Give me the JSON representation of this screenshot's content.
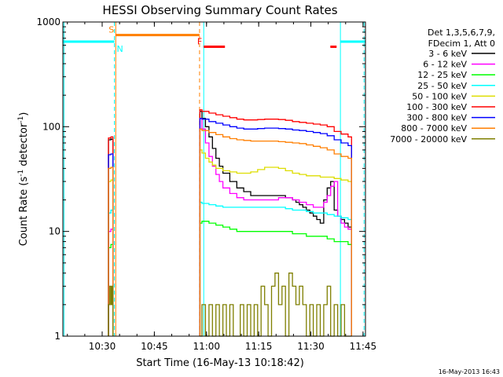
{
  "chart_data": {
    "type": "line",
    "title": "HESSI Observing Summary Count Rates",
    "xlabel": "Start Time (16-May-13 10:18:42)",
    "ylabel_prefix": "Count Rate (s",
    "ylabel_exp1": "-1",
    "ylabel_mid": " detector",
    "ylabel_exp2": "-1",
    "ylabel_suffix": ")",
    "footer": "16-May-2013 16:43",
    "x_axis_units": "minutes since 10:18:42",
    "xlim": [
      0,
      87
    ],
    "ylim": [
      1,
      1000
    ],
    "y_scale": "log",
    "x_ticks": [
      {
        "value": 11.3,
        "label": "10:30"
      },
      {
        "value": 26.3,
        "label": "10:45"
      },
      {
        "value": 41.3,
        "label": "11:00"
      },
      {
        "value": 56.3,
        "label": "11:15"
      },
      {
        "value": 71.3,
        "label": "11:30"
      },
      {
        "value": 86.3,
        "label": "11:45"
      }
    ],
    "y_ticks": [
      {
        "value": 1,
        "label": "1"
      },
      {
        "value": 10,
        "label": "10"
      },
      {
        "value": 100,
        "label": "100"
      },
      {
        "value": 1000,
        "label": "1000"
      }
    ],
    "legend": {
      "position": "right",
      "header": [
        "Det 1,3,5,6,7,9,",
        "FDecim 1, Att 0"
      ]
    },
    "series": [
      {
        "name": "3 - 6 keV",
        "color": "#000000",
        "segments": [
          {
            "x": [
              13.1,
              13.8,
              14.4
            ],
            "y": [
              75,
              76,
              74
            ]
          },
          {
            "x": [
              39.4,
              40,
              41,
              42,
              43,
              44,
              45,
              46,
              48,
              50,
              52,
              54,
              56,
              58,
              60,
              62,
              64,
              66,
              67,
              68,
              69,
              70,
              71,
              72,
              73,
              74,
              75,
              76,
              77,
              78,
              79,
              80,
              81,
              82,
              83
            ],
            "y": [
              140,
              120,
              100,
              80,
              62,
              50,
              42,
              36,
              30,
              26,
              24,
              22,
              22,
              22,
              22,
              22,
              21,
              20,
              19,
              18,
              17,
              16,
              15,
              14,
              13,
              12,
              20,
              26,
              30,
              16,
              14,
              13,
              12,
              11,
              9
            ]
          }
        ]
      },
      {
        "name": "6 - 12 keV",
        "color": "#ff00ff",
        "segments": [
          {
            "x": [
              13.1,
              13.8,
              14.4
            ],
            "y": [
              10,
              10.5,
              10
            ]
          },
          {
            "x": [
              39.4,
              40,
              41,
              42,
              43,
              44,
              45,
              46,
              48,
              50,
              52,
              54,
              56,
              58,
              60,
              62,
              64,
              66,
              68,
              70,
              72,
              74,
              75,
              76,
              77,
              78,
              79,
              80,
              81,
              82,
              83
            ],
            "y": [
              120,
              95,
              70,
              52,
              42,
              35,
              30,
              26,
              23,
              21,
              20,
              20,
              20,
              20,
              20,
              21,
              21,
              20,
              19,
              18,
              17,
              17,
              19,
              22,
              27,
              30,
              14,
              12,
              11,
              10.5,
              10
            ]
          }
        ]
      },
      {
        "name": "12 - 25 keV",
        "color": "#00ff00",
        "segments": [
          {
            "x": [
              13.1,
              13.8,
              14.4
            ],
            "y": [
              7,
              7.5,
              7
            ]
          },
          {
            "x": [
              39.4,
              40,
              42,
              44,
              46,
              48,
              50,
              52,
              54,
              56,
              58,
              60,
              62,
              64,
              66,
              68,
              70,
              72,
              74,
              76,
              78,
              80,
              82,
              83
            ],
            "y": [
              12,
              12.5,
              12,
              11.5,
              11,
              10.5,
              10,
              10,
              10,
              10,
              10,
              10,
              10,
              10,
              9.5,
              9.5,
              9,
              9,
              9,
              8.5,
              8,
              8,
              7.5,
              7
            ]
          }
        ]
      },
      {
        "name": "25 - 50 keV",
        "color": "#00ffff",
        "segments": [
          {
            "x": [
              13.1,
              13.8,
              14.4
            ],
            "y": [
              15,
              16,
              15
            ]
          },
          {
            "x": [
              39.4,
              40,
              42,
              44,
              46,
              48,
              50,
              52,
              54,
              56,
              58,
              60,
              62,
              64,
              66,
              68,
              70,
              72,
              74,
              76,
              78,
              80,
              82,
              83
            ],
            "y": [
              19,
              18.5,
              18,
              17.5,
              17,
              17,
              17,
              17,
              17,
              17,
              17,
              17,
              17,
              16.5,
              16,
              16,
              15.5,
              15,
              15,
              14.5,
              14,
              13.5,
              13,
              13
            ]
          }
        ]
      },
      {
        "name": "50 - 100 keV",
        "color": "#dddd00",
        "segments": [
          {
            "x": [
              13.1,
              13.8,
              14.4
            ],
            "y": [
              30,
              31,
              30
            ]
          },
          {
            "x": [
              39.4,
              40,
              41,
              42,
              43,
              44,
              46,
              48,
              50,
              52,
              54,
              56,
              58,
              60,
              62,
              64,
              66,
              68,
              70,
              72,
              74,
              76,
              78,
              80,
              82,
              83
            ],
            "y": [
              60,
              56,
              50,
              46,
              43,
              40,
              38,
              37,
              36,
              36,
              37,
              39,
              41,
              41,
              40,
              38,
              36,
              35,
              34,
              34,
              33,
              33,
              32,
              31,
              30,
              30
            ]
          }
        ]
      },
      {
        "name": "100 - 300 keV",
        "color": "#ff0000",
        "segments": [
          {
            "x": [
              13.1,
              13.8,
              14.4
            ],
            "y": [
              78,
              80,
              78
            ]
          },
          {
            "x": [
              39.4,
              40,
              42,
              44,
              46,
              48,
              50,
              52,
              54,
              56,
              58,
              60,
              62,
              64,
              66,
              68,
              70,
              72,
              74,
              76,
              78,
              80,
              82,
              83
            ],
            "y": [
              145,
              140,
              135,
              130,
              126,
              122,
              118,
              116,
              116,
              117,
              118,
              118,
              117,
              115,
              112,
              110,
              108,
              106,
              104,
              100,
              90,
              85,
              80,
              78
            ]
          }
        ]
      },
      {
        "name": "300 - 800 keV",
        "color": "#0000ff",
        "segments": [
          {
            "x": [
              13.1,
              13.8,
              14.4
            ],
            "y": [
              54,
              55,
              54
            ]
          },
          {
            "x": [
              39.4,
              40,
              42,
              44,
              46,
              48,
              50,
              52,
              54,
              56,
              58,
              60,
              62,
              64,
              66,
              68,
              70,
              72,
              74,
              76,
              78,
              80,
              82,
              83
            ],
            "y": [
              120,
              118,
              112,
              108,
              104,
              100,
              97,
              95,
              95,
              96,
              97,
              97,
              96,
              95,
              93,
              92,
              90,
              88,
              86,
              82,
              75,
              70,
              66,
              64
            ]
          }
        ]
      },
      {
        "name": "800 - 7000 keV",
        "color": "#ff7f00",
        "segments": [
          {
            "x": [
              13.1,
              13.8,
              14.4
            ],
            "y": [
              40,
              41,
              40
            ]
          },
          {
            "x": [
              39.4,
              40,
              42,
              44,
              46,
              48,
              50,
              52,
              54,
              56,
              58,
              60,
              62,
              64,
              66,
              68,
              70,
              72,
              74,
              76,
              78,
              80,
              82,
              83
            ],
            "y": [
              95,
              92,
              88,
              84,
              80,
              77,
              75,
              74,
              73,
              73,
              73,
              73,
              72,
              71,
              70,
              69,
              67,
              65,
              63,
              60,
              55,
              52,
              50,
              49
            ]
          }
        ]
      },
      {
        "name": "7000 - 20000 keV",
        "color": "#7f7f00",
        "segments": [
          {
            "x": [
              13.1,
              13.5,
              13.8,
              14.1,
              14.4
            ],
            "y": [
              2,
              3,
              2,
              3,
              2
            ]
          },
          {
            "x": [
              39.4,
              40,
              41,
              42,
              43,
              44,
              45,
              46,
              47,
              48,
              49,
              50,
              51,
              52,
              53,
              54,
              55,
              56,
              57,
              58,
              59,
              60,
              61,
              62,
              63,
              64,
              65,
              66,
              67,
              68,
              69,
              70,
              71,
              72,
              73,
              74,
              75,
              76,
              77,
              78,
              79,
              80,
              81,
              82,
              83
            ],
            "y": [
              1,
              2,
              1,
              2,
              1,
              2,
              1,
              2,
              1,
              2,
              1,
              1,
              2,
              1,
              2,
              1,
              2,
              1,
              3,
              2,
              1,
              3,
              4,
              2,
              3,
              1,
              4,
              3,
              2,
              3,
              2,
              1,
              2,
              1,
              2,
              1,
              2,
              3,
              1,
              2,
              1,
              2,
              1,
              1,
              1
            ]
          }
        ]
      }
    ],
    "flags": [
      {
        "label": "S",
        "color": "#ff7f00",
        "y": 750,
        "x": [
          15.2,
          39.3
        ]
      },
      {
        "label": "N",
        "color": "#00ffff",
        "y": 650,
        "x": [
          0,
          14.8
        ]
      },
      {
        "label": "",
        "color": "#00ffff",
        "y": 650,
        "x": [
          79.8,
          87
        ]
      },
      {
        "label": "F",
        "color": "#ff0000",
        "y": 580,
        "x": [
          40.5,
          46.6
        ]
      },
      {
        "label": "",
        "color": "#ff0000",
        "y": 580,
        "x": [
          76.9,
          78.7
        ]
      }
    ],
    "vlines": [
      {
        "x": 0.3,
        "color": "#00ffff",
        "style": "solid"
      },
      {
        "x": 14.8,
        "color": "#00ffff",
        "style": "dashed"
      },
      {
        "x": 15.2,
        "color": "#ff7f00",
        "style": "solid"
      },
      {
        "x": 39.3,
        "color": "#ff7f00",
        "style": "dashed"
      },
      {
        "x": 40.5,
        "color": "#00ffff",
        "style": "solid"
      },
      {
        "x": 79.8,
        "color": "#00ffff",
        "style": "solid"
      },
      {
        "x": 86.6,
        "color": "#00ffff",
        "style": "dashed"
      }
    ]
  }
}
